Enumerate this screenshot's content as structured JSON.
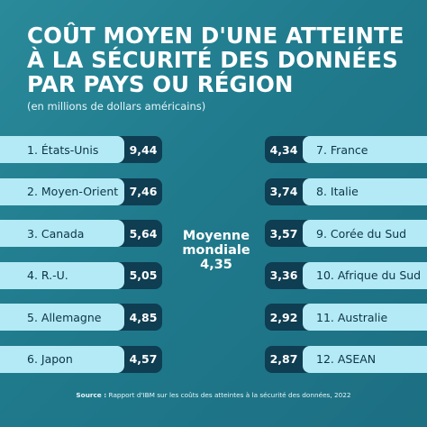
{
  "title": "COÛT MOYEN D'UNE ATTEINTE À LA SÉCURITÉ DES DONNÉES PAR PAYS OU RÉGION",
  "subtitle": "(en millions de dollars américains)",
  "average": {
    "line1": "Moyenne",
    "line2": "mondiale",
    "value": "4,35"
  },
  "source": {
    "prefix": "Source :",
    "text": " Rapport d'IBM sur les coûts des atteintes à la sécurité des données, 2022"
  },
  "colors": {
    "background": "#1f7a8c",
    "label_bg": "#b3eaf5",
    "value_bg": "#0f3d52"
  },
  "chart_data": {
    "type": "table",
    "title": "COÛT MOYEN D'UNE ATTEINTE À LA SÉCURITÉ DES DONNÉES PAR PAYS OU RÉGION",
    "subtitle": "(en millions de dollars américains)",
    "left": [
      {
        "label": "1. États-Unis",
        "value": "9,44"
      },
      {
        "label": "2. Moyen-Orient",
        "value": "7,46"
      },
      {
        "label": "3. Canada",
        "value": "5,64"
      },
      {
        "label": "4. R.-U.",
        "value": "5,05"
      },
      {
        "label": "5. Allemagne",
        "value": "4,85"
      },
      {
        "label": "6. Japon",
        "value": "4,57"
      }
    ],
    "right": [
      {
        "label": "7. France",
        "value": "4,34"
      },
      {
        "label": "8. Italie",
        "value": "3,74"
      },
      {
        "label": "9. Corée du Sud",
        "value": "3,57"
      },
      {
        "label": "10. Afrique du Sud",
        "value": "3,36"
      },
      {
        "label": "11. Australie",
        "value": "2,92"
      },
      {
        "label": "12. ASEAN",
        "value": "2,87"
      }
    ],
    "global_average": "4,35"
  }
}
